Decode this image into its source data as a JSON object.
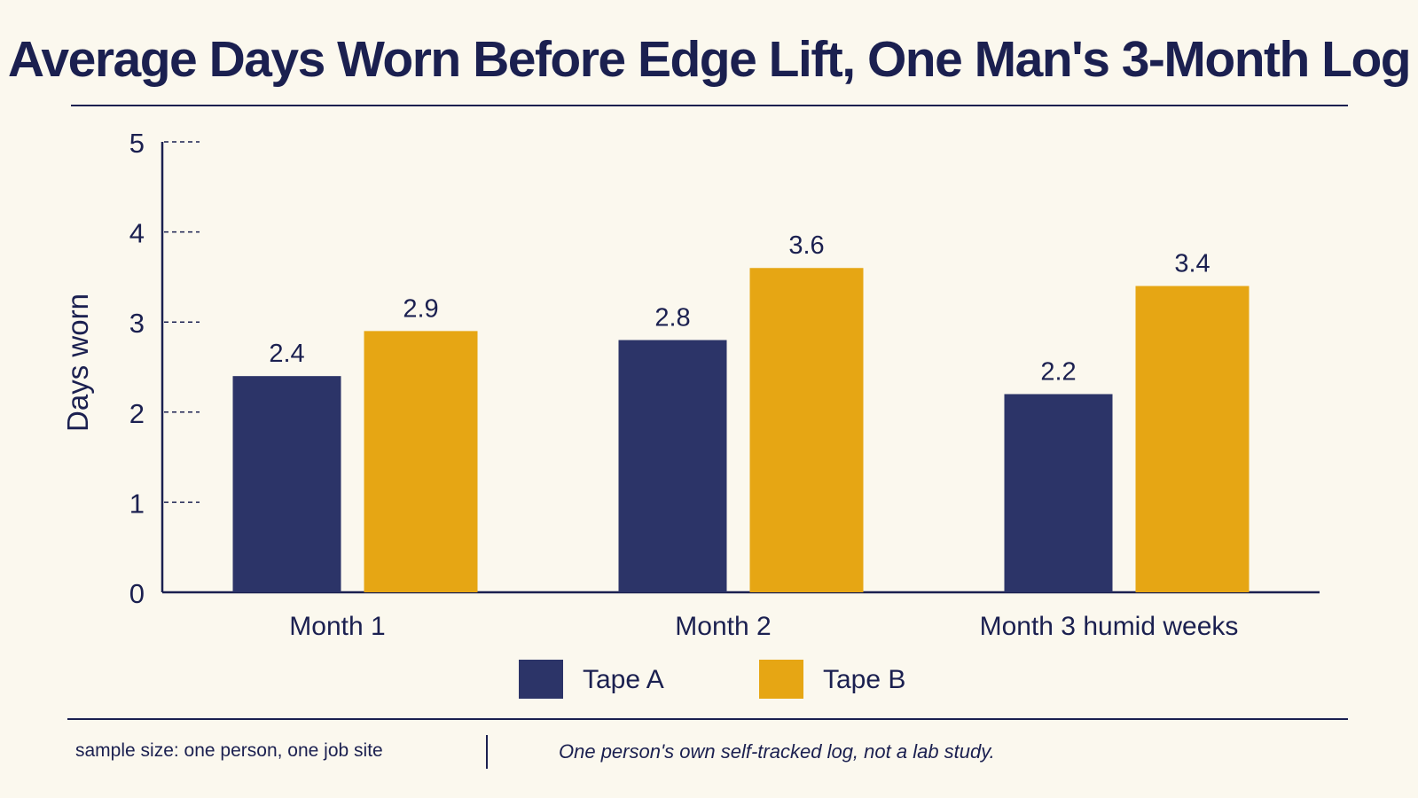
{
  "chart_data": {
    "type": "bar",
    "title": "Average Days Worn Before Edge Lift, One Man's 3-Month Log",
    "ylabel": "Days worn",
    "xlabel": "",
    "ylim": [
      0,
      5
    ],
    "yticks": [
      0,
      1,
      2,
      3,
      4,
      5
    ],
    "categories": [
      "Month 1",
      "Month 2",
      "Month 3 humid weeks"
    ],
    "series": [
      {
        "name": "Tape A",
        "values": [
          2.4,
          2.8,
          2.2
        ],
        "color": "#2c3468"
      },
      {
        "name": "Tape B",
        "values": [
          2.9,
          3.6,
          3.4
        ],
        "color": "#e6a614"
      }
    ],
    "data_labels": [
      [
        "2.4",
        "2.8",
        "2.2"
      ],
      [
        "2.9",
        "3.6",
        "3.4"
      ]
    ],
    "legend_position": "bottom-center",
    "grid": false
  },
  "footer": {
    "note_left": "sample size: one person, one job site",
    "note_right": "One person's own self-tracked log, not a lab study."
  },
  "colors": {
    "background": "#fbf8ee",
    "ink": "#1b2050"
  }
}
